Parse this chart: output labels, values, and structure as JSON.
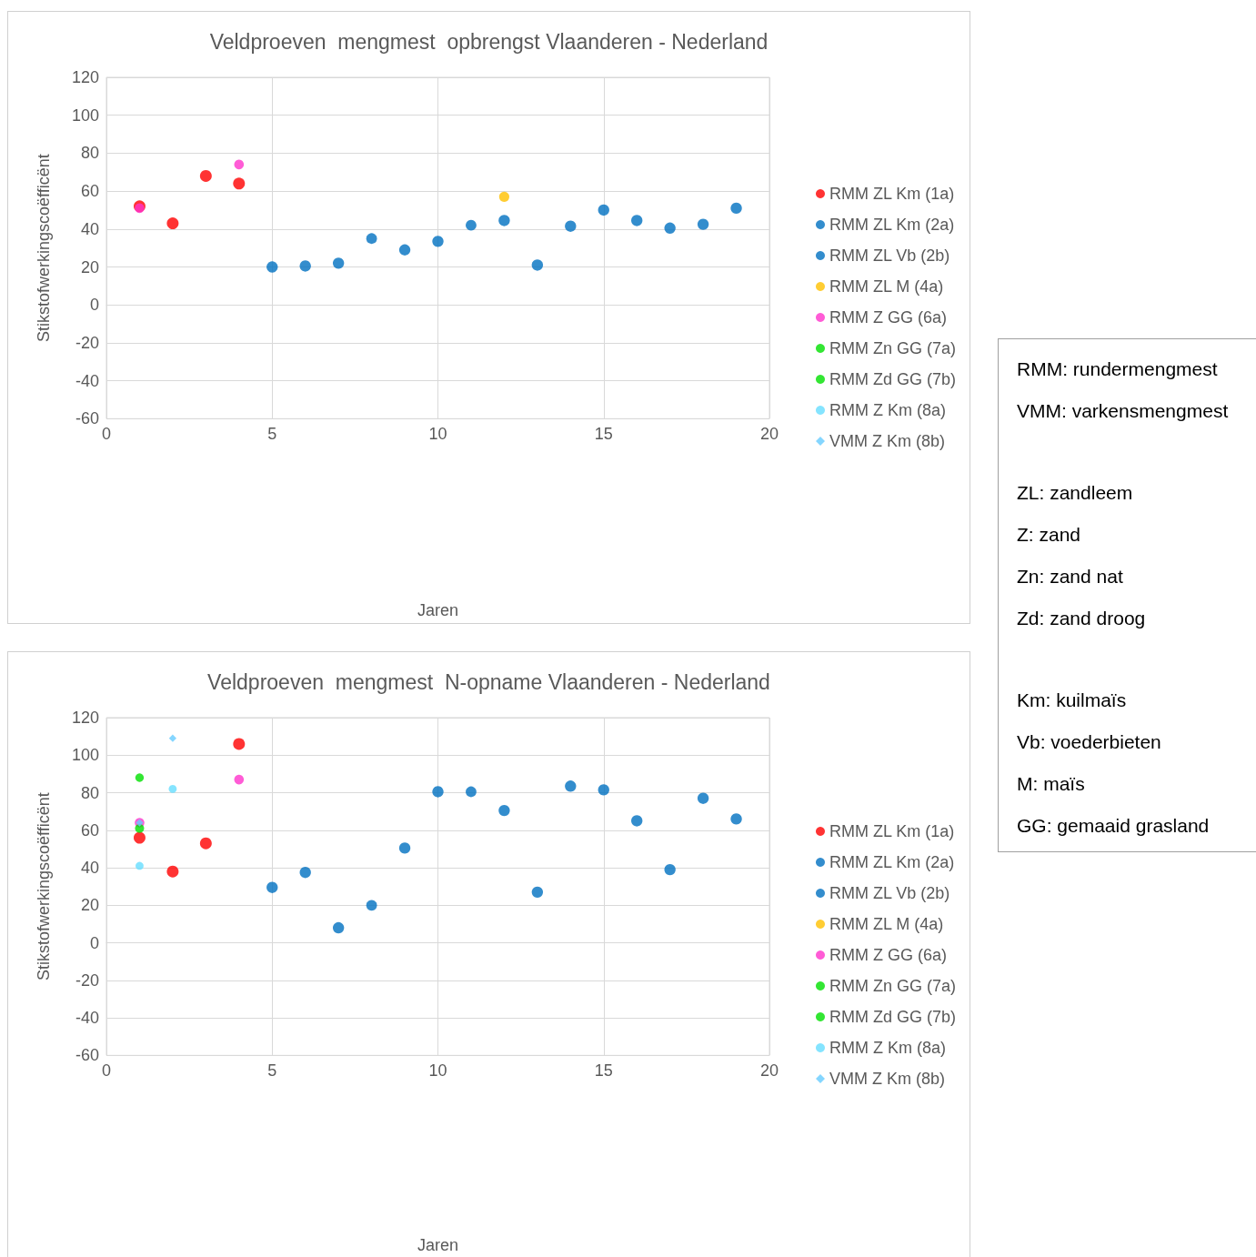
{
  "chart_data": [
    {
      "type": "scatter",
      "title": "Veldproeven  mengmest  opbrengst Vlaanderen - Nederland",
      "xlabel": "Jaren",
      "ylabel": "Stikstofwerkingscoëfficënt",
      "xlim": [
        0,
        20
      ],
      "xticks": [
        0,
        5,
        10,
        15,
        20
      ],
      "ylim": [
        -60,
        120
      ],
      "yticks": [
        -60,
        -40,
        -20,
        0,
        20,
        40,
        60,
        80,
        100,
        120
      ],
      "grid": true,
      "legend": "right",
      "marker": "circle",
      "series": [
        {
          "name": "RMM ZL Km (1a)",
          "color": "#ff0000",
          "x": [
            1,
            2,
            3,
            4
          ],
          "values": [
            52,
            43,
            68,
            64
          ]
        },
        {
          "name": "RMM ZL Km (2a)",
          "color": "#0070c0",
          "x": [
            5,
            6,
            7,
            9,
            10,
            12,
            13,
            14,
            15,
            16,
            17,
            18,
            19
          ],
          "values": [
            20,
            20.5,
            22,
            29,
            33.5,
            44.5,
            21,
            41.5,
            50,
            44.5,
            40.5,
            42.5,
            51
          ]
        },
        {
          "name": "RMM ZL Vb (2b)",
          "color": "#0070c0",
          "x": [
            8,
            11
          ],
          "values": [
            35,
            42
          ]
        },
        {
          "name": "RMM ZL M (4a)",
          "color": "#ffc000",
          "x": [
            12
          ],
          "values": [
            57
          ]
        },
        {
          "name": "RMM Z GG (6a)",
          "color": "#ff33cc",
          "x": [
            1,
            4
          ],
          "values": [
            51,
            74
          ]
        },
        {
          "name": "RMM Zn GG (7a)",
          "color": "#00e000"
        },
        {
          "name": "RMM Zd GG (7b)",
          "color": "#00e000"
        },
        {
          "name": "RMM Z Km (8a)",
          "color": "#66ddff"
        },
        {
          "name": "VMM Z Km (8b)",
          "color": "#66ccff",
          "marker": "diamond"
        }
      ]
    },
    {
      "type": "scatter",
      "title": "Veldproeven  mengmest  N-opname Vlaanderen - Nederland",
      "xlabel": "Jaren",
      "ylabel": "Stikstofwerkingscoëfficënt",
      "xlim": [
        0,
        20
      ],
      "xticks": [
        0,
        5,
        10,
        15,
        20
      ],
      "ylim": [
        -60,
        120
      ],
      "yticks": [
        -60,
        -40,
        -20,
        0,
        20,
        40,
        60,
        80,
        100,
        120
      ],
      "grid": true,
      "legend": "right",
      "marker": "circle",
      "series": [
        {
          "name": "RMM ZL Km (1a)",
          "color": "#ff0000",
          "x": [
            1,
            2,
            3,
            4
          ],
          "values": [
            56,
            38,
            53,
            106
          ]
        },
        {
          "name": "RMM ZL Km (2a)",
          "color": "#0070c0",
          "x": [
            5,
            6,
            7,
            9,
            10,
            12,
            13,
            14,
            15,
            16,
            17,
            18,
            19
          ],
          "values": [
            29.5,
            37.5,
            8,
            50.5,
            80.5,
            70.5,
            27,
            83.5,
            81.5,
            65,
            39,
            77,
            66
          ]
        },
        {
          "name": "RMM ZL Vb (2b)",
          "color": "#0070c0",
          "x": [
            8,
            11
          ],
          "values": [
            20,
            80.5
          ]
        },
        {
          "name": "RMM ZL M (4a)",
          "color": "#ffc000"
        },
        {
          "name": "RMM Z GG (6a)",
          "color": "#ff33cc",
          "x": [
            1,
            4
          ],
          "values": [
            64,
            87
          ]
        },
        {
          "name": "RMM Zn GG (7a)",
          "color": "#00e000",
          "x": [
            1
          ],
          "values": [
            61
          ]
        },
        {
          "name": "RMM Zd GG (7b)",
          "color": "#00e000",
          "x": [
            1
          ],
          "values": [
            88
          ]
        },
        {
          "name": "RMM Z Km (8a)",
          "color": "#66ddff",
          "x": [
            1,
            2
          ],
          "values": [
            41,
            82
          ]
        },
        {
          "name": "VMM Z Km (8b)",
          "color": "#66ccff",
          "marker": "diamond",
          "x": [
            1,
            2
          ],
          "values": [
            64,
            109
          ]
        }
      ]
    },
    {
      "type": "other",
      "annotations": [
        "RMM: rundermengmest",
        "VMM: varkensmengmest",
        "ZL: zandleem",
        "Z: zand",
        "Zn: zand nat",
        "Zd: zand droog",
        "Km: kuilmaïs",
        "Vb: voederbieten",
        "M: maïs",
        "GG: gemaaid grasland"
      ]
    }
  ]
}
